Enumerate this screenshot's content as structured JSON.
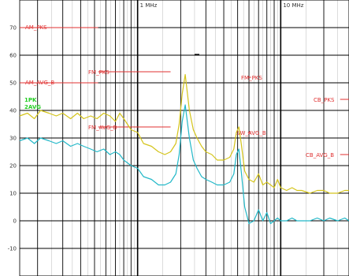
{
  "chart_data": {
    "type": "line",
    "x_scale": "log",
    "xlim": [
      0.15,
      30
    ],
    "ylim": [
      -20,
      80
    ],
    "y_ticks": [
      -10,
      0,
      10,
      20,
      30,
      40,
      50,
      60,
      70
    ],
    "y_tick_labels": [
      "-10",
      "0",
      "10",
      "20",
      "30",
      "40",
      "50",
      "60",
      "70"
    ],
    "x_tick_labels": [
      {
        "x": 1,
        "label": "1 MHz"
      },
      {
        "x": 10,
        "label": "10 MHz"
      }
    ],
    "grid": true,
    "legend": [
      {
        "label": "1PK",
        "color": "#22cc22"
      },
      {
        "label": "2AVG",
        "color": "#22cc22"
      }
    ],
    "limit_lines": [
      {
        "name": "AM_PKS",
        "label": "AM_PKS",
        "x": [
          0.15,
          0.53
        ],
        "y": 70
      },
      {
        "name": "AM_AVG_B",
        "label": "AM_AVG_B",
        "x": [
          0.15,
          0.53
        ],
        "y": 50
      },
      {
        "name": "FM_PKS",
        "label": "FM_PKS",
        "x": [
          0.53,
          1.7
        ],
        "y": 54
      },
      {
        "name": "FM_AVG_B",
        "label": "FM_AVG_B",
        "x": [
          0.53,
          1.7
        ],
        "y": 34
      },
      {
        "name": "FM_PKS_2",
        "label": "FM_PKS",
        "x": [
          5.9,
          6.2
        ],
        "y": 52
      },
      {
        "name": "SW_AVG_B",
        "label": "SW_AVG_B",
        "x": [
          5.9,
          6.2
        ],
        "y": 32
      },
      {
        "name": "CB_PKS",
        "label": "CB_PKS",
        "x": [
          26,
          30
        ],
        "y": 44
      },
      {
        "name": "CB_AVG_B",
        "label": "CB_AVG_B",
        "x": [
          26,
          30
        ],
        "y": 24
      }
    ],
    "series": [
      {
        "name": "1PK",
        "color": "#d4c41a",
        "x": [
          0.15,
          0.17,
          0.19,
          0.21,
          0.24,
          0.27,
          0.3,
          0.34,
          0.38,
          0.42,
          0.47,
          0.52,
          0.58,
          0.64,
          0.7,
          0.75,
          0.8,
          0.9,
          1.0,
          1.1,
          1.25,
          1.4,
          1.55,
          1.7,
          1.85,
          1.95,
          2.05,
          2.15,
          2.3,
          2.45,
          2.6,
          2.8,
          3.0,
          3.3,
          3.6,
          4.0,
          4.4,
          4.7,
          4.9,
          5.1,
          5.3,
          5.6,
          6.0,
          6.5,
          7.0,
          7.5,
          8.0,
          8.5,
          9.0,
          9.5,
          10,
          11,
          12,
          13,
          14,
          16,
          18,
          20,
          22,
          25,
          28,
          30
        ],
        "y": [
          38,
          39,
          37,
          40,
          39,
          38,
          39,
          37,
          39,
          37,
          38,
          37,
          39,
          38,
          36,
          39,
          37,
          33,
          32,
          28,
          27,
          25,
          24,
          25,
          28,
          35,
          46,
          53,
          40,
          33,
          30,
          27,
          25,
          24,
          22,
          22,
          23,
          26,
          32,
          34,
          28,
          18,
          15,
          14,
          17,
          13,
          14,
          13,
          12,
          15,
          12,
          11,
          12,
          11,
          11,
          10,
          11,
          11,
          10,
          10,
          11,
          11
        ]
      },
      {
        "name": "2AVG",
        "color": "#22b8c8",
        "x": [
          0.15,
          0.17,
          0.19,
          0.21,
          0.24,
          0.27,
          0.3,
          0.34,
          0.38,
          0.42,
          0.47,
          0.52,
          0.58,
          0.64,
          0.7,
          0.75,
          0.8,
          0.9,
          1.0,
          1.1,
          1.25,
          1.4,
          1.55,
          1.7,
          1.85,
          1.95,
          2.05,
          2.15,
          2.3,
          2.45,
          2.6,
          2.8,
          3.0,
          3.3,
          3.6,
          4.0,
          4.4,
          4.7,
          4.9,
          5.1,
          5.3,
          5.6,
          6.0,
          6.5,
          7.0,
          7.5,
          8.0,
          8.5,
          9.0,
          9.5,
          10,
          11,
          12,
          13,
          14,
          16,
          18,
          20,
          22,
          25,
          28,
          30
        ],
        "y": [
          29,
          30,
          28,
          30,
          29,
          28,
          29,
          27,
          28,
          27,
          26,
          25,
          26,
          24,
          25,
          24,
          22,
          20,
          19,
          16,
          15,
          13,
          13,
          14,
          17,
          24,
          36,
          42,
          30,
          22,
          19,
          16,
          15,
          14,
          13,
          13,
          14,
          17,
          24,
          26,
          18,
          5,
          -1,
          0,
          4,
          0,
          3,
          -1,
          0,
          1,
          0,
          0,
          1,
          0,
          0,
          0,
          1,
          0,
          1,
          0,
          1,
          0
        ]
      }
    ]
  }
}
